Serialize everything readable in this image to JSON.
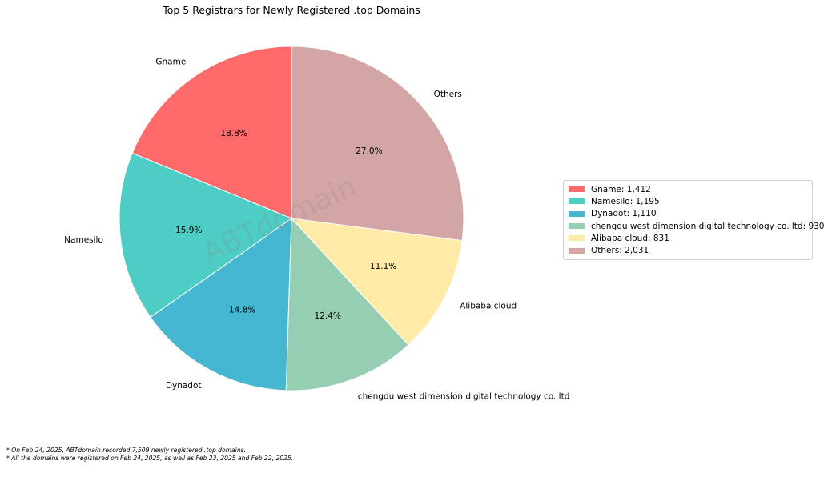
{
  "chart_data": {
    "type": "pie",
    "title": "Top 5 Registrars for Newly Registered .top Domains",
    "slices": [
      {
        "label": "Gname",
        "value": 1412,
        "pct_label": "18.8%",
        "legend": "Gname: 1,412",
        "color": "#FF6B6B"
      },
      {
        "label": "Namesilo",
        "value": 1195,
        "pct_label": "15.9%",
        "legend": "Namesilo: 1,195",
        "color": "#4ECDC4"
      },
      {
        "label": "Dynadot",
        "value": 1110,
        "pct_label": "14.8%",
        "legend": "Dynadot: 1,110",
        "color": "#45B7D1"
      },
      {
        "label": "chengdu west dimension digital technology co. ltd",
        "value": 930,
        "pct_label": "12.4%",
        "legend": "chengdu west dimension digital technology co. ltd: 930",
        "color": "#96CEB4"
      },
      {
        "label": "Alibaba cloud",
        "value": 831,
        "pct_label": "11.1%",
        "legend": "Alibaba cloud: 831",
        "color": "#FFEAA7"
      },
      {
        "label": "Others",
        "value": 2031,
        "pct_label": "27.0%",
        "legend": "Others: 2,031",
        "color": "#D4A5A5"
      }
    ],
    "start_angle_deg": 90,
    "direction": "counterclockwise",
    "legend_position": "right"
  },
  "watermark": "ABTdomain",
  "footnotes": [
    "* On Feb 24, 2025, ABTdomain recorded 7,509 newly registered .top domains.",
    "* All the domains were registered on Feb 24, 2025, as well as Feb 23, 2025 and Feb 22, 2025."
  ]
}
